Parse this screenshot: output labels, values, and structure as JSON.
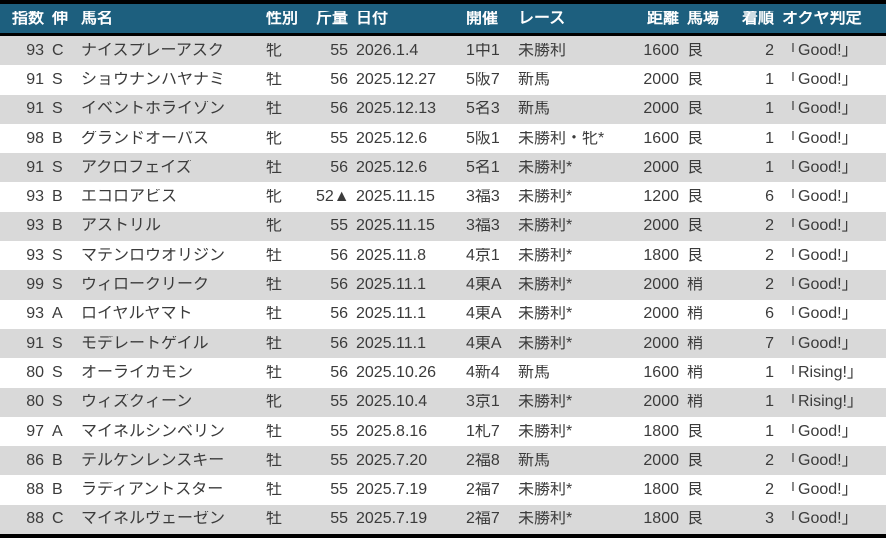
{
  "table": {
    "columns": [
      {
        "key": "shisu",
        "label": "指数",
        "align": "right"
      },
      {
        "key": "nobi",
        "label": "伸",
        "align": "left"
      },
      {
        "key": "bamei",
        "label": "馬名",
        "align": "left"
      },
      {
        "key": "seibetsu",
        "label": "性別",
        "align": "left"
      },
      {
        "key": "kinryo",
        "label": "斤量",
        "align": "right"
      },
      {
        "key": "hizuke",
        "label": "日付",
        "align": "left"
      },
      {
        "key": "kaisai",
        "label": "開催",
        "align": "left"
      },
      {
        "key": "race",
        "label": "レース",
        "align": "left"
      },
      {
        "key": "kyori",
        "label": "距離",
        "align": "right"
      },
      {
        "key": "baba",
        "label": "馬場",
        "align": "left"
      },
      {
        "key": "chakujun",
        "label": "着順",
        "align": "right"
      },
      {
        "key": "hantei",
        "label": "オクヤ判定",
        "align": "left"
      }
    ],
    "rows": [
      [
        "93",
        "C",
        "ナイスプレーアスク",
        "牝",
        "55",
        "2026.1.4",
        "1中1",
        "未勝利",
        "1600",
        "良",
        "2",
        "「Good!」"
      ],
      [
        "91",
        "S",
        "ショウナンハヤナミ",
        "牡",
        "56",
        "2025.12.27",
        "5阪7",
        "新馬",
        "2000",
        "良",
        "1",
        "「Good!」"
      ],
      [
        "91",
        "S",
        "イベントホライゾン",
        "牡",
        "56",
        "2025.12.13",
        "5名3",
        "新馬",
        "2000",
        "良",
        "1",
        "「Good!」"
      ],
      [
        "98",
        "B",
        "グランドオーパス",
        "牝",
        "55",
        "2025.12.6",
        "5阪1",
        "未勝利・牝*",
        "1600",
        "良",
        "1",
        "「Good!」"
      ],
      [
        "91",
        "S",
        "アクロフェイズ",
        "牡",
        "56",
        "2025.12.6",
        "5名1",
        "未勝利*",
        "2000",
        "良",
        "1",
        "「Good!」"
      ],
      [
        "93",
        "B",
        "エコロアビス",
        "牝",
        "52▲",
        "2025.11.15",
        "3福3",
        "未勝利*",
        "1200",
        "良",
        "6",
        "「Good!」"
      ],
      [
        "93",
        "B",
        "アストリル",
        "牝",
        "55",
        "2025.11.15",
        "3福3",
        "未勝利*",
        "2000",
        "良",
        "2",
        "「Good!」"
      ],
      [
        "93",
        "S",
        "マテンロウオリジン",
        "牡",
        "56",
        "2025.11.8",
        "4京1",
        "未勝利*",
        "1800",
        "良",
        "2",
        "「Good!」"
      ],
      [
        "99",
        "S",
        "ウィロークリーク",
        "牡",
        "56",
        "2025.11.1",
        "4東A",
        "未勝利*",
        "2000",
        "稍",
        "2",
        "「Good!」"
      ],
      [
        "93",
        "A",
        "ロイヤルヤマト",
        "牡",
        "56",
        "2025.11.1",
        "4東A",
        "未勝利*",
        "2000",
        "稍",
        "6",
        "「Good!」"
      ],
      [
        "91",
        "S",
        "モデレートゲイル",
        "牡",
        "56",
        "2025.11.1",
        "4東A",
        "未勝利*",
        "2000",
        "稍",
        "7",
        "「Good!」"
      ],
      [
        "80",
        "S",
        "オーライカモン",
        "牡",
        "56",
        "2025.10.26",
        "4新4",
        "新馬",
        "1600",
        "稍",
        "1",
        "「Rising!」"
      ],
      [
        "80",
        "S",
        "ウィズクィーン",
        "牝",
        "55",
        "2025.10.4",
        "3京1",
        "未勝利*",
        "2000",
        "稍",
        "1",
        "「Rising!」"
      ],
      [
        "97",
        "A",
        "マイネルシンベリン",
        "牡",
        "55",
        "2025.8.16",
        "1札7",
        "未勝利*",
        "1800",
        "良",
        "1",
        "「Good!」"
      ],
      [
        "86",
        "B",
        "テルケンレンスキー",
        "牡",
        "55",
        "2025.7.20",
        "2福8",
        "新馬",
        "2000",
        "良",
        "2",
        "「Good!」"
      ],
      [
        "88",
        "B",
        "ラディアントスター",
        "牡",
        "55",
        "2025.7.19",
        "2福7",
        "未勝利*",
        "1800",
        "良",
        "2",
        "「Good!」"
      ],
      [
        "88",
        "C",
        "マイネルヴェーゼン",
        "牡",
        "55",
        "2025.7.19",
        "2福7",
        "未勝利*",
        "1800",
        "良",
        "3",
        "「Good!」"
      ]
    ]
  },
  "colors": {
    "header_bg": "#1d5f7e",
    "header_text": "#ffffff",
    "row_alt": "#d9d9d9",
    "row": "#ffffff",
    "border": "#000000",
    "text": "#3b3b3b"
  }
}
